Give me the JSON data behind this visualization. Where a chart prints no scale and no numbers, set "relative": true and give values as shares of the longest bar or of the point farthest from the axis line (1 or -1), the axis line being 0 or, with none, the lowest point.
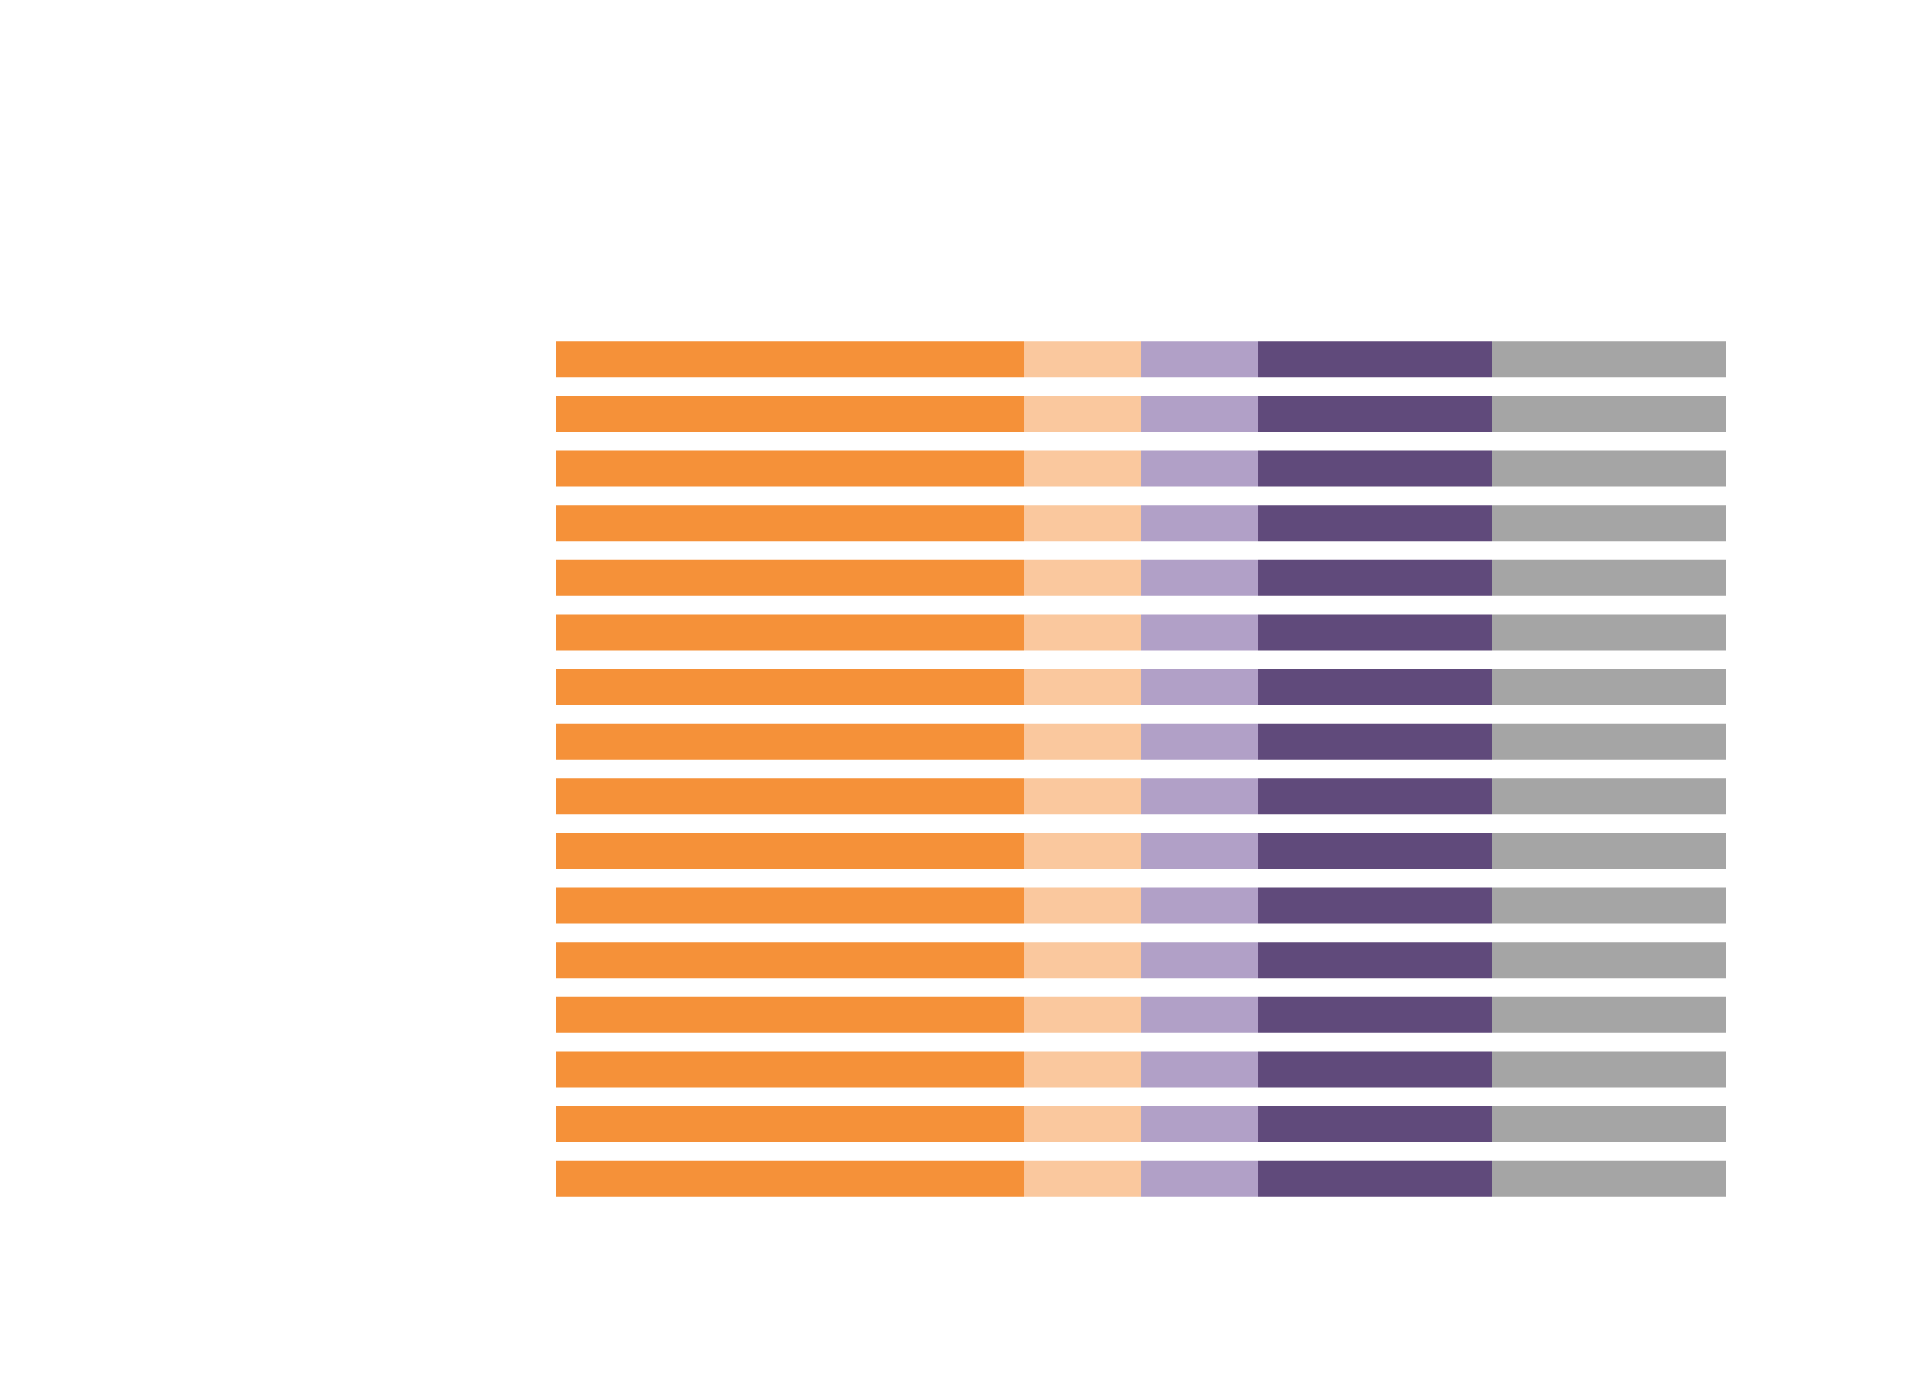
{
  "chart_data": {
    "type": "bar",
    "orientation": "horizontal",
    "stacked": true,
    "relative": true,
    "categories": [
      null,
      null,
      null,
      null,
      null,
      null,
      null,
      null,
      null,
      null,
      null,
      null,
      null,
      null,
      null,
      null
    ],
    "series": [
      {
        "color": "#f59139",
        "values": [
          0.4,
          0.4,
          0.4,
          0.4,
          0.4,
          0.4,
          0.4,
          0.4,
          0.4,
          0.4,
          0.4,
          0.4,
          0.4,
          0.4,
          0.4,
          0.4
        ]
      },
      {
        "color": "#fac89e",
        "values": [
          0.1,
          0.1,
          0.1,
          0.1,
          0.1,
          0.1,
          0.1,
          0.1,
          0.1,
          0.1,
          0.1,
          0.1,
          0.1,
          0.1,
          0.1,
          0.1
        ]
      },
      {
        "color": "#b1a0c7",
        "values": [
          0.1,
          0.1,
          0.1,
          0.1,
          0.1,
          0.1,
          0.1,
          0.1,
          0.1,
          0.1,
          0.1,
          0.1,
          0.1,
          0.1,
          0.1,
          0.1
        ]
      },
      {
        "color": "#604a7b",
        "values": [
          0.2,
          0.2,
          0.2,
          0.2,
          0.2,
          0.2,
          0.2,
          0.2,
          0.2,
          0.2,
          0.2,
          0.2,
          0.2,
          0.2,
          0.2,
          0.2
        ]
      },
      {
        "color": "#a5a5a5",
        "values": [
          0.2,
          0.2,
          0.2,
          0.2,
          0.2,
          0.2,
          0.2,
          0.2,
          0.2,
          0.2,
          0.2,
          0.2,
          0.2,
          0.2,
          0.2,
          0.2
        ]
      }
    ]
  }
}
